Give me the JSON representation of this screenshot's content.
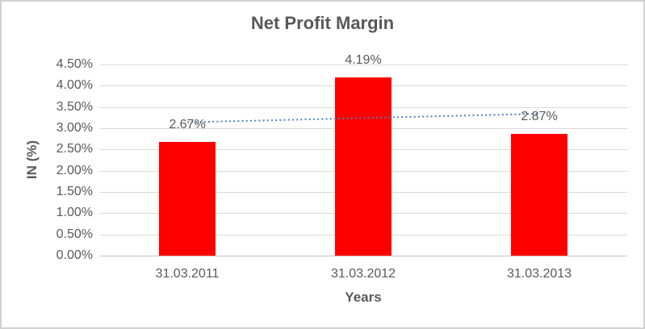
{
  "frame": {
    "background": "#ffffff",
    "border_color": "#d2d2d2"
  },
  "chart_data": {
    "type": "bar",
    "title": "Net Profit Margin",
    "categories": [
      "31.03.2011",
      "31.03.2012",
      "31.03.2013"
    ],
    "values": [
      2.67,
      4.19,
      2.87
    ],
    "data_labels": [
      "2.67%",
      "4.19%",
      "2.87%"
    ],
    "xlabel": "Years",
    "ylabel": "IN (%)",
    "ylim": [
      0,
      4.5
    ],
    "ytick_step": 0.5,
    "ytick_labels": [
      "0.00%",
      "0.50%",
      "1.00%",
      "1.50%",
      "2.00%",
      "2.50%",
      "3.00%",
      "3.50%",
      "4.00%",
      "4.50%"
    ],
    "bar_color": "#ff0000",
    "grid": true,
    "legend": false,
    "text_color": "#595959",
    "gridline_color": "#d9d9d9",
    "axisline_color": "#c3c3c3",
    "trendline": {
      "type": "linear",
      "style": "dotted",
      "color": "#4f81bd",
      "values": [
        3.14,
        3.34
      ]
    }
  }
}
